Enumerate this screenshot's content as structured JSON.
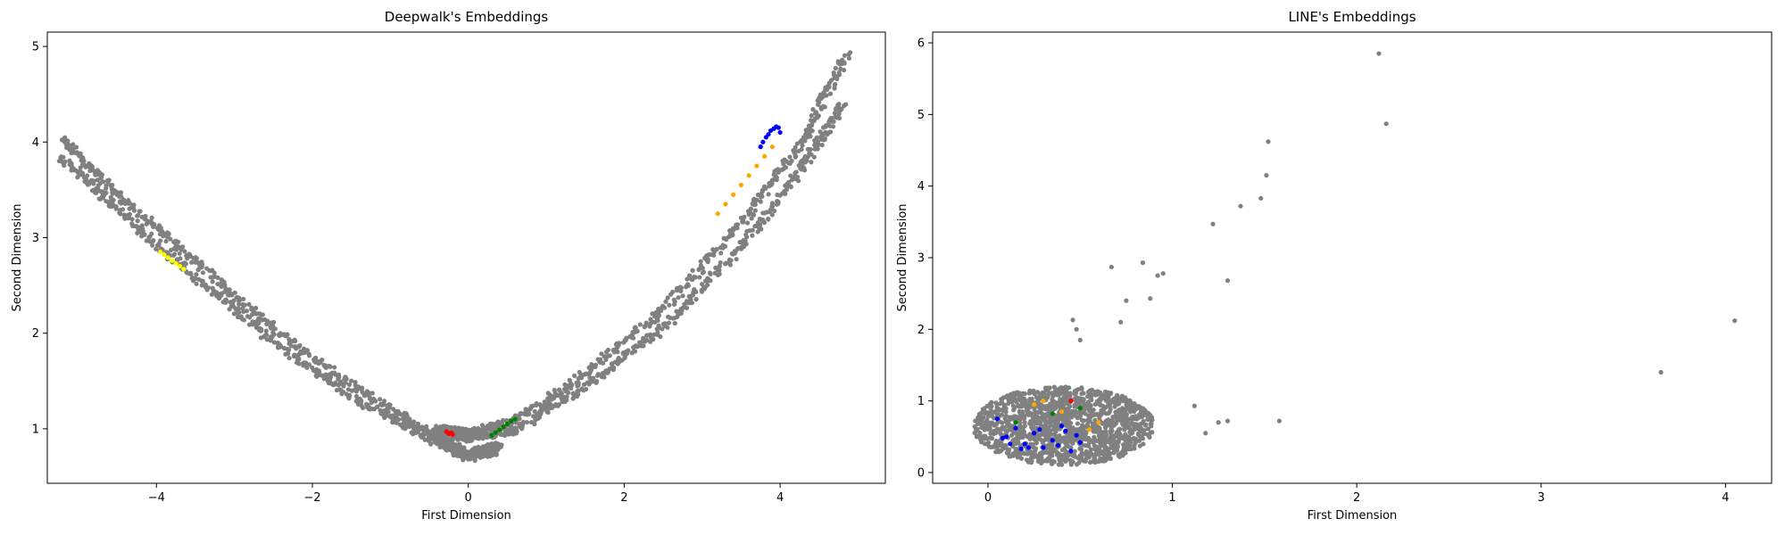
{
  "chart_data": [
    {
      "type": "scatter",
      "title": "Deepwalk's Embeddings",
      "xlabel": "First Dimension",
      "ylabel": "Second Dimension",
      "xlim": [
        -5.4,
        5.35
      ],
      "ylim": [
        0.43,
        5.15
      ],
      "xticks": [
        -4,
        -2,
        0,
        2,
        4
      ],
      "yticks": [
        1,
        2,
        3,
        4,
        5
      ],
      "xtick_labels": [
        "−4",
        "−2",
        "0",
        "2",
        "4"
      ],
      "ytick_labels": [
        "1",
        "2",
        "3",
        "4",
        "5"
      ],
      "grid": false,
      "background": {
        "color": "#808080",
        "curves": [
          {
            "x": [
              -5.2,
              -4.5,
              -3.5,
              -2.5,
              -1.5,
              -0.5,
              0.0,
              0.4
            ],
            "y": [
              4.02,
              3.45,
              2.75,
              2.05,
              1.45,
              0.97,
              0.74,
              0.83
            ]
          },
          {
            "x": [
              -5.2,
              -4.5,
              -3.5,
              -2.5,
              -1.5,
              -0.5,
              0.0,
              0.4
            ],
            "y": [
              3.83,
              3.3,
              2.58,
              1.92,
              1.34,
              0.9,
              0.69,
              0.78
            ]
          },
          {
            "x": [
              -0.4,
              0.0,
              0.6,
              1.5,
              2.5,
              3.5,
              4.3,
              4.85
            ],
            "y": [
              1.0,
              0.96,
              1.08,
              1.58,
              2.25,
              3.15,
              4.02,
              4.92
            ]
          },
          {
            "x": [
              -0.4,
              0.0,
              0.6,
              1.5,
              2.5,
              3.5,
              4.3,
              4.8
            ],
            "y": [
              0.95,
              0.9,
              0.98,
              1.45,
              2.05,
              2.9,
              3.75,
              4.4
            ]
          }
        ]
      },
      "series": [
        {
          "color": "#ffff00",
          "x": [
            -3.95,
            -3.9,
            -3.85,
            -3.8,
            -3.75,
            -3.7,
            -3.65
          ],
          "y": [
            2.85,
            2.82,
            2.79,
            2.76,
            2.73,
            2.7,
            2.67
          ]
        },
        {
          "color": "#ff0000",
          "x": [
            -0.28,
            -0.25,
            -0.22,
            -0.2
          ],
          "y": [
            0.97,
            0.95,
            0.96,
            0.94
          ]
        },
        {
          "color": "#008000",
          "x": [
            0.3,
            0.35,
            0.4,
            0.45,
            0.5,
            0.55,
            0.6
          ],
          "y": [
            0.93,
            0.96,
            0.99,
            1.02,
            1.05,
            1.08,
            1.1
          ]
        },
        {
          "color": "#ffa500",
          "x": [
            3.2,
            3.3,
            3.4,
            3.5,
            3.6,
            3.7,
            3.8,
            3.9
          ],
          "y": [
            3.25,
            3.35,
            3.45,
            3.55,
            3.65,
            3.75,
            3.85,
            3.95
          ]
        },
        {
          "color": "#0000ff",
          "x": [
            3.75,
            3.78,
            3.82,
            3.85,
            3.88,
            3.92,
            3.95,
            3.98,
            4.0
          ],
          "y": [
            3.95,
            4.0,
            4.05,
            4.08,
            4.12,
            4.14,
            4.16,
            4.15,
            4.1
          ]
        }
      ]
    },
    {
      "type": "scatter",
      "title": "LINE's Embeddings",
      "xlabel": "First Dimension",
      "ylabel": "Second Dimension",
      "xlim": [
        -0.3,
        4.25
      ],
      "ylim": [
        -0.15,
        6.15
      ],
      "xticks": [
        0,
        1,
        2,
        3,
        4
      ],
      "yticks": [
        0,
        1,
        2,
        3,
        4,
        5,
        6
      ],
      "xtick_labels": [
        "0",
        "1",
        "2",
        "3",
        "4"
      ],
      "ytick_labels": [
        "0",
        "1",
        "2",
        "3",
        "4",
        "5",
        "6"
      ],
      "grid": false,
      "background": {
        "color": "#808080",
        "cluster": {
          "x_range": [
            -0.08,
            0.9
          ],
          "y_range": [
            0.1,
            1.2
          ]
        },
        "outliers": {
          "x": [
            2.12,
            2.16,
            1.52,
            1.51,
            1.48,
            1.37,
            1.22,
            1.3,
            0.84,
            0.75,
            0.67,
            0.72,
            0.95,
            0.88,
            0.92,
            0.46,
            0.48,
            0.5,
            1.12,
            1.25,
            1.3,
            1.58,
            1.18,
            3.65,
            4.05
          ],
          "y": [
            5.85,
            4.87,
            4.62,
            4.15,
            3.83,
            3.72,
            3.47,
            2.68,
            2.93,
            2.4,
            2.87,
            2.1,
            2.78,
            2.43,
            2.75,
            2.13,
            2.0,
            1.85,
            0.93,
            0.7,
            0.72,
            0.72,
            0.55,
            1.4,
            2.12
          ]
        }
      },
      "series": [
        {
          "color": "#0000ff",
          "x": [
            0.05,
            0.1,
            0.15,
            0.2,
            0.25,
            0.3,
            0.35,
            0.4,
            0.45,
            0.5,
            0.08,
            0.18,
            0.28,
            0.38,
            0.48,
            0.12,
            0.22,
            0.42
          ],
          "y": [
            0.75,
            0.5,
            0.62,
            0.4,
            0.55,
            0.35,
            0.45,
            0.65,
            0.3,
            0.42,
            0.48,
            0.33,
            0.6,
            0.38,
            0.52,
            0.4,
            0.35,
            0.58
          ]
        },
        {
          "color": "#ffa500",
          "x": [
            0.25,
            0.4,
            0.55,
            0.6,
            0.3
          ],
          "y": [
            0.95,
            0.85,
            0.6,
            0.7,
            1.0
          ]
        },
        {
          "color": "#008000",
          "x": [
            0.15,
            0.35,
            0.5
          ],
          "y": [
            0.7,
            0.82,
            0.9
          ]
        },
        {
          "color": "#ff0000",
          "x": [
            0.45
          ],
          "y": [
            1.0
          ]
        }
      ]
    }
  ]
}
